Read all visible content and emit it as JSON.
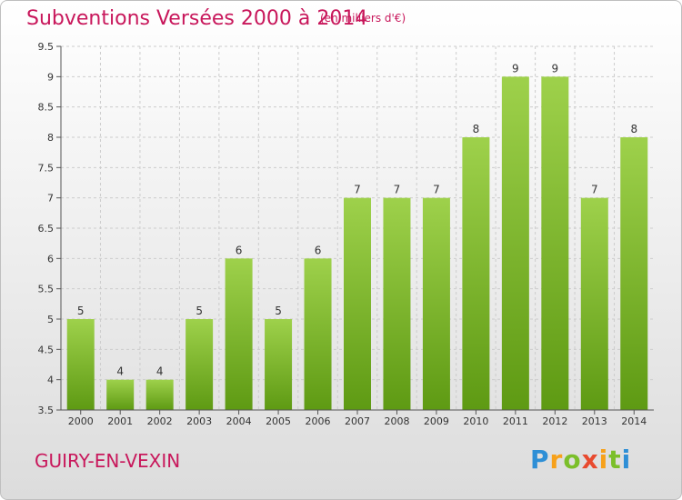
{
  "header": {
    "title": "Subventions Versées 2000 à 2014",
    "unit_note": "(en milliers d'€)"
  },
  "footer": {
    "commune": "GUIRY-EN-VEXIN",
    "logo_text": "Proxiti"
  },
  "colors": {
    "title": "#c8175b",
    "bar_light": "#9ed14b",
    "bar_dark": "#5e9a13",
    "grid": "#cccccc",
    "axis_text": "#333333"
  },
  "chart_data": {
    "type": "bar",
    "categories": [
      "2000",
      "2001",
      "2002",
      "2003",
      "2004",
      "2005",
      "2006",
      "2007",
      "2008",
      "2009",
      "2010",
      "2011",
      "2012",
      "2013",
      "2014"
    ],
    "values": [
      5,
      4,
      4,
      5,
      6,
      5,
      6,
      7,
      7,
      7,
      8,
      9,
      9,
      7,
      8
    ],
    "ylim": [
      3.5,
      9.5
    ],
    "yticks": [
      "3.5",
      "4",
      "4.5",
      "5",
      "5.5",
      "6",
      "6.5",
      "7",
      "7.5",
      "8",
      "8.5",
      "9",
      "9.5"
    ],
    "grid": "horizontal-dashed"
  }
}
